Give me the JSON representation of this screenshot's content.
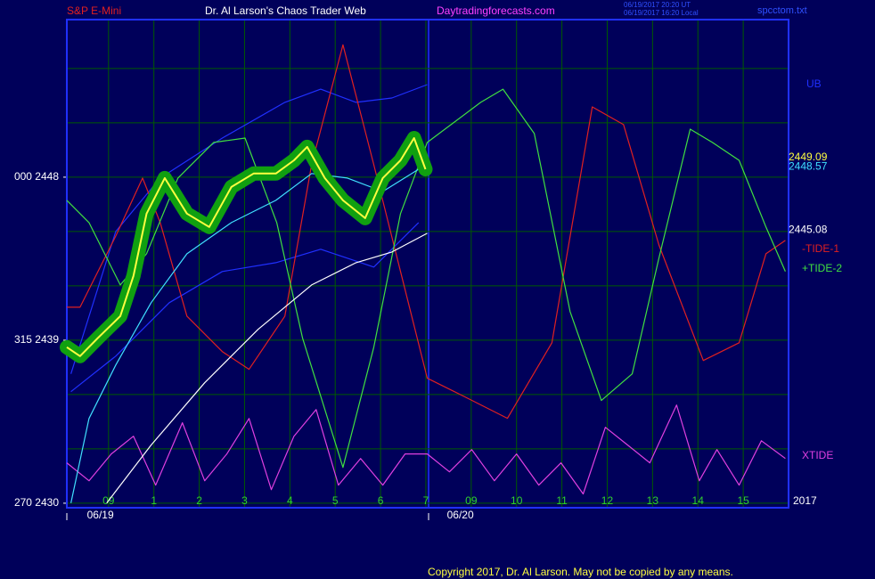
{
  "chart_data": {
    "type": "line",
    "title": "Dr. Al Larson's Chaos Trader Web",
    "header_left": "S&P E-Mini",
    "header_site": "Daytradingforecasts.com",
    "timestamps": [
      "06/19/2017 20:20 UT",
      "06/19/2017 16:20 Local"
    ],
    "file_name": "spcctom.txt",
    "copyright": "Copyright 2017, Dr. Al Larson. May not be copied by any means.",
    "year_label": "2017",
    "xlim": [
      -0.92,
      15
    ],
    "ylim": [
      2429.75,
      2456.7
    ],
    "xticks": [
      {
        "value": 0,
        "label": "09"
      },
      1,
      2,
      3,
      4,
      5,
      6,
      7,
      {
        "value": 8,
        "label": "09"
      },
      {
        "value": 9,
        "label": "10"
      },
      {
        "value": 10,
        "label": "11"
      },
      {
        "value": 11,
        "label": "12"
      },
      {
        "value": 12,
        "label": "13"
      },
      {
        "value": 13,
        "label": "14"
      },
      {
        "value": 14,
        "label": "15"
      }
    ],
    "xtick_labels_fix": null,
    "yticks": [
      {
        "value": 2430,
        "label": "270  2430"
      },
      {
        "value": 2439,
        "label": "315  2439"
      },
      {
        "value": 2448,
        "label": "000  2448"
      }
    ],
    "grid_y": [
      2430,
      2433,
      2436,
      2439,
      2442,
      2445,
      2448,
      2451,
      2454
    ],
    "grid": true,
    "date_labels": [
      {
        "x": -0.18,
        "label": "06/19"
      },
      {
        "x": 7.76,
        "label": "06/20"
      }
    ],
    "last_values": [
      {
        "value": 2449.09,
        "color": "#ffff40"
      },
      {
        "value": 2448.57,
        "color": "#40e0ff"
      },
      {
        "value": 2445.08,
        "color": "#ffffff"
      }
    ],
    "series": [
      {
        "name": "UB",
        "color": "#2030ff",
        "x": [
          -0.83,
          0.16,
          1.14,
          2.51,
          3.89,
          4.68,
          5.46,
          6.25,
          7.03
        ],
        "values": [
          2437.14,
          2445.0,
          2447.95,
          2450.16,
          2452.13,
          2452.86,
          2452.13,
          2452.37,
          2453.11
        ]
      },
      {
        "color": "#2030ff",
        "x": [
          -0.83,
          0.16,
          1.34,
          2.51,
          3.69,
          4.68,
          5.85,
          6.84
        ],
        "values": [
          2436.16,
          2438.12,
          2441.07,
          2442.79,
          2443.28,
          2444.02,
          2443.04,
          2445.49
        ]
      },
      {
        "name": "-TIDE-1",
        "color": "#e02020",
        "x": [
          -0.92,
          -0.63,
          0.16,
          0.75,
          1.14,
          1.73,
          2.51,
          3.1,
          3.89,
          4.48,
          5.17,
          5.85,
          6.44,
          7.03,
          7.82,
          8.8,
          9.78,
          10.67,
          11.36,
          12.14,
          13.12,
          13.91,
          14.5,
          14.93
        ],
        "values": [
          2440.82,
          2440.82,
          2444.75,
          2447.95,
          2445.49,
          2440.33,
          2438.37,
          2437.39,
          2440.33,
          2448.69,
          2455.31,
          2448.69,
          2442.79,
          2436.9,
          2435.92,
          2434.69,
          2438.86,
          2451.88,
          2450.9,
          2444.26,
          2437.88,
          2438.86,
          2443.77,
          2444.51
        ]
      },
      {
        "name": "+TIDE-2",
        "color": "#40e040",
        "x": [
          -0.92,
          -0.43,
          0.26,
          0.84,
          1.53,
          2.32,
          3.01,
          3.71,
          4.28,
          5.17,
          5.85,
          6.44,
          7.03,
          8.21,
          8.7,
          9.39,
          10.18,
          10.87,
          11.55,
          12.14,
          12.83,
          13.32,
          13.91,
          14.5,
          14.93
        ],
        "values": [
          2446.72,
          2445.49,
          2442.05,
          2443.77,
          2447.95,
          2449.92,
          2450.16,
          2445.49,
          2439.11,
          2431.98,
          2438.61,
          2445.99,
          2449.92,
          2452.13,
          2452.86,
          2450.41,
          2440.58,
          2435.67,
          2437.14,
          2443.53,
          2450.65,
          2449.92,
          2448.93,
          2445.25,
          2442.79
        ]
      },
      {
        "name": "XTIDE",
        "color": "#e040e0",
        "x": [
          -0.92,
          -0.43,
          0.06,
          0.55,
          1.04,
          1.63,
          2.12,
          2.61,
          3.1,
          3.59,
          4.09,
          4.58,
          5.07,
          5.56,
          6.05,
          6.54,
          7.03,
          7.52,
          8.01,
          8.51,
          9.0,
          9.49,
          9.98,
          10.47,
          10.96,
          11.45,
          11.94,
          12.53,
          13.03,
          13.42,
          13.91,
          14.4,
          14.93
        ],
        "values": [
          2432.23,
          2431.24,
          2432.72,
          2433.7,
          2431.0,
          2434.44,
          2431.24,
          2432.72,
          2434.68,
          2430.75,
          2433.7,
          2435.17,
          2431.0,
          2432.47,
          2431.0,
          2432.72,
          2432.72,
          2431.73,
          2432.96,
          2431.24,
          2432.72,
          2431.0,
          2432.23,
          2430.51,
          2434.19,
          2433.21,
          2432.23,
          2435.42,
          2431.24,
          2432.96,
          2431.0,
          2433.45,
          2432.47
        ]
      },
      {
        "color": "#ffffff",
        "x": [
          -0.04,
          0.94,
          2.12,
          3.3,
          4.48,
          5.46,
          6.25,
          7.03
        ],
        "values": [
          2430.01,
          2433.21,
          2436.65,
          2439.6,
          2442.05,
          2443.28,
          2443.87,
          2444.9
        ]
      },
      {
        "color": "#40e0ff",
        "x": [
          -0.83,
          -0.43,
          0.16,
          0.94,
          1.73,
          2.71,
          3.69,
          4.48,
          5.27,
          6.05,
          6.84
        ],
        "values": [
          2430.01,
          2434.68,
          2437.63,
          2441.07,
          2443.77,
          2445.49,
          2446.72,
          2448.2,
          2447.95,
          2447.21,
          2448.44
        ]
      },
      {
        "color": "#ffff40",
        "halo": "#10a010",
        "x": [
          -0.92,
          -0.63,
          -0.24,
          0.26,
          0.55,
          0.84,
          1.24,
          1.73,
          2.22,
          2.71,
          3.2,
          3.69,
          4.09,
          4.38,
          4.77,
          5.17,
          5.66,
          6.05,
          6.44,
          6.74,
          6.99
        ],
        "values": [
          2438.61,
          2438.12,
          2439.11,
          2440.33,
          2442.55,
          2445.99,
          2447.95,
          2445.99,
          2445.25,
          2447.46,
          2448.2,
          2448.2,
          2448.93,
          2449.67,
          2447.95,
          2446.72,
          2445.74,
          2447.95,
          2448.93,
          2450.16,
          2448.44
        ]
      }
    ]
  }
}
